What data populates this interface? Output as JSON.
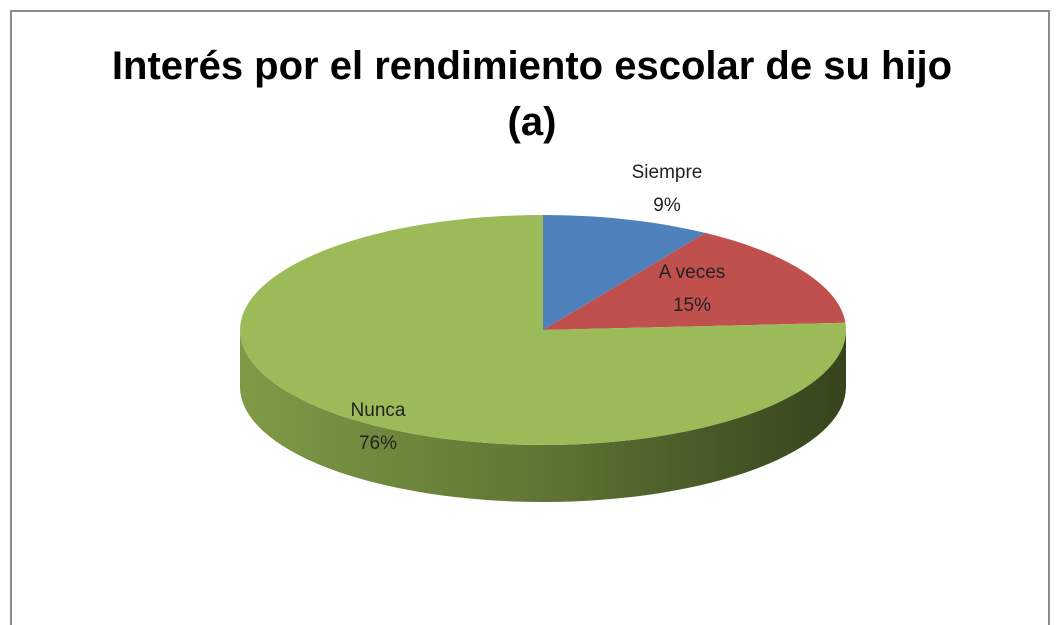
{
  "chart_data": {
    "type": "pie",
    "title": "Interés por el rendimiento escolar de su hijo (a)",
    "categories": [
      "Siempre",
      "A veces",
      "Nunca"
    ],
    "values": [
      9,
      15,
      76
    ],
    "value_labels": [
      "9%",
      "15%",
      "76%"
    ],
    "colors": [
      "#4f81bd",
      "#c0504d",
      "#9bbb59"
    ]
  }
}
